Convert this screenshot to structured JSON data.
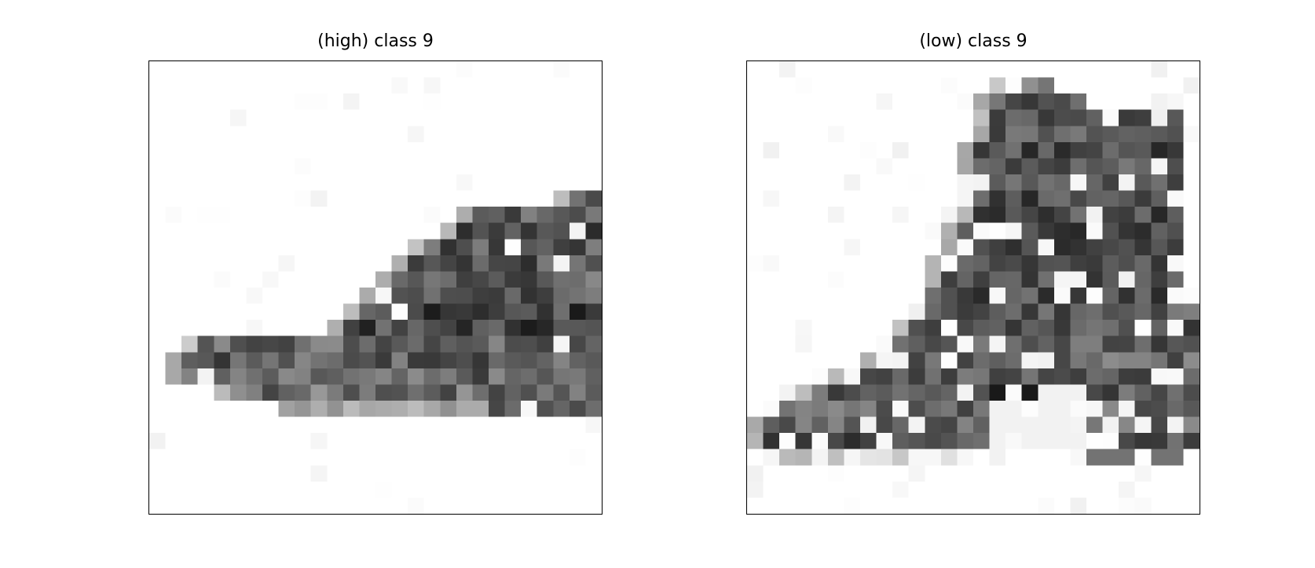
{
  "figure": {
    "panels": [
      {
        "title": "(high) class 9",
        "shape": "sneaker"
      },
      {
        "title": "(low) class 9",
        "shape": "ankle-boot"
      }
    ],
    "colormap": "gray_r",
    "image_size": 28
  }
}
